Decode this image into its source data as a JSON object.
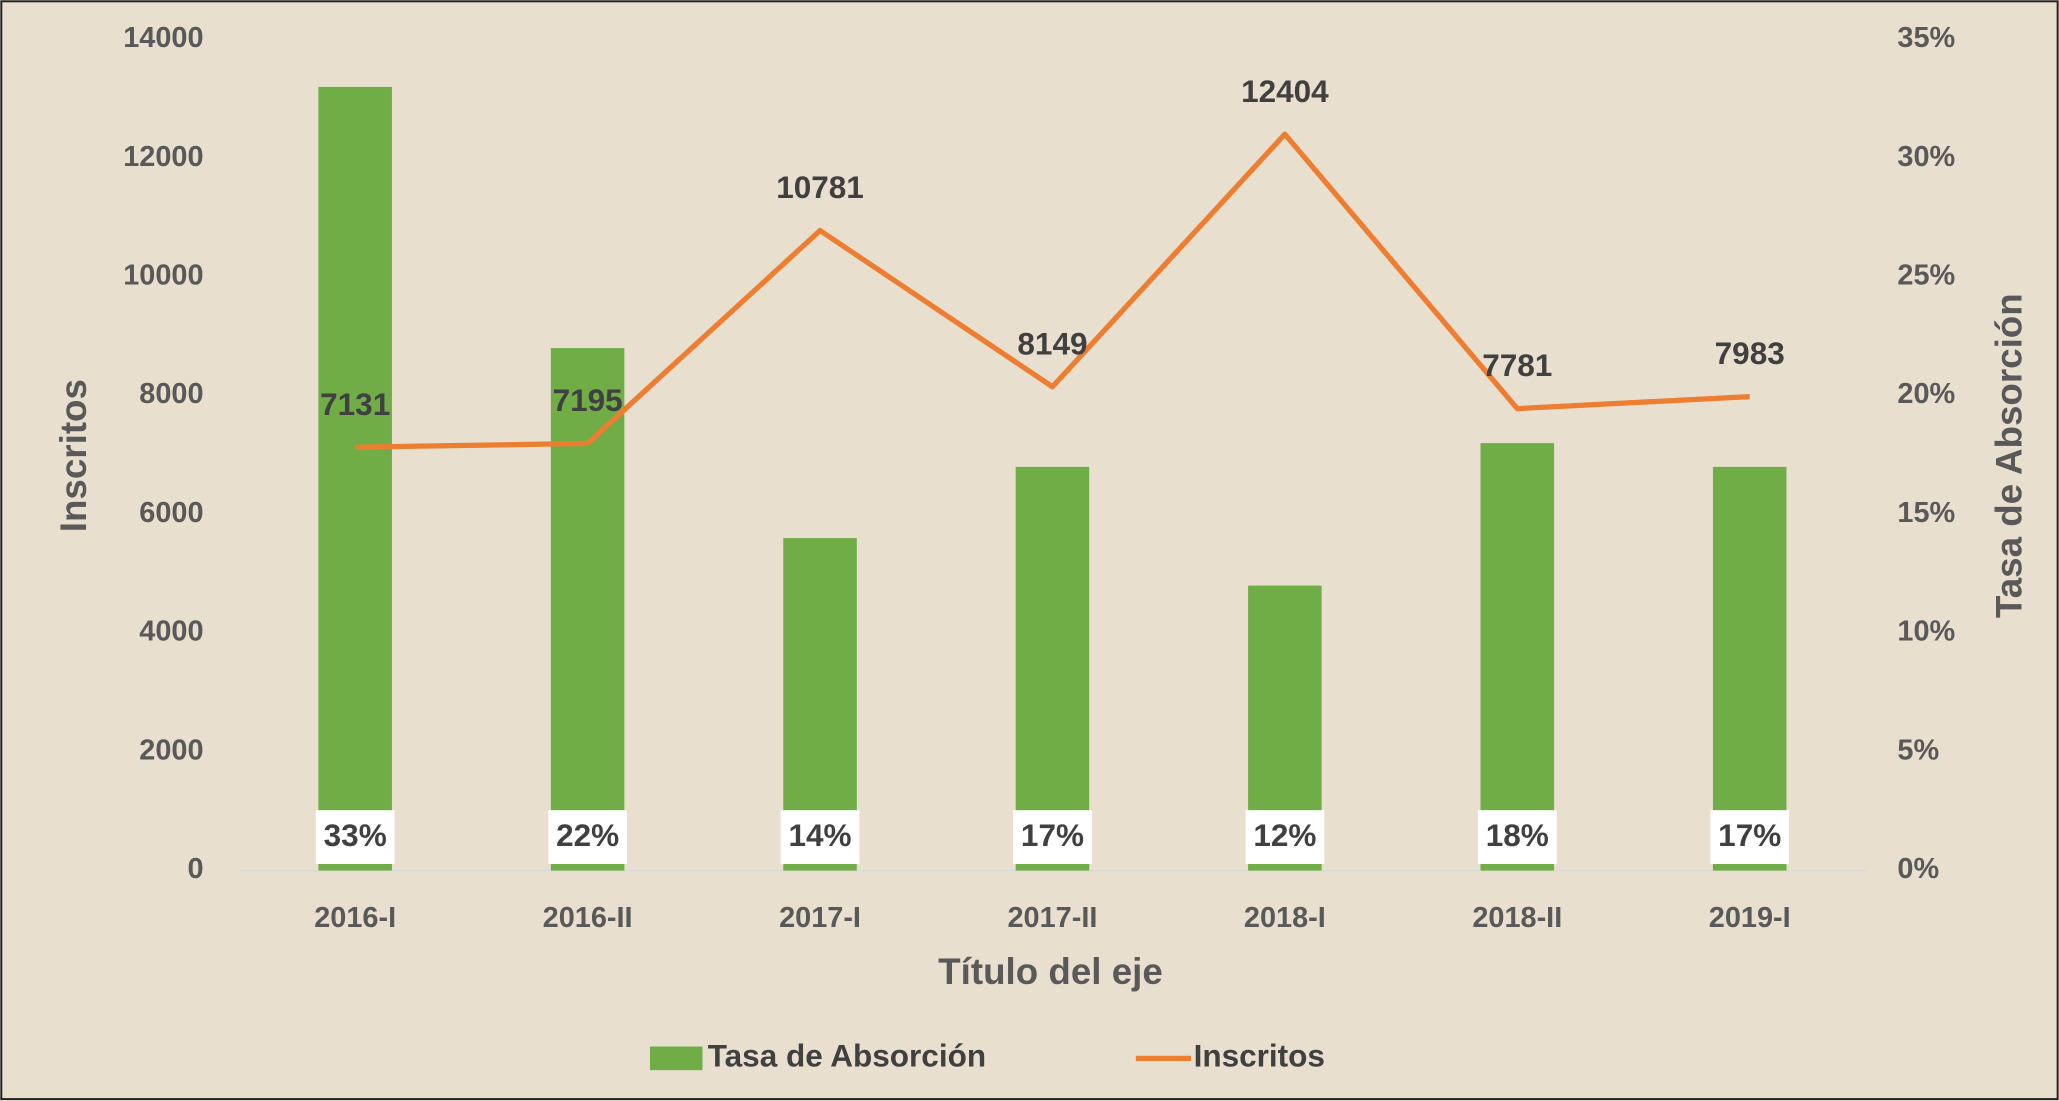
{
  "chart_data": {
    "type": "combo",
    "categories": [
      "2016-I",
      "2016-II",
      "2017-I",
      "2017-II",
      "2018-I",
      "2018-II",
      "2019-I"
    ],
    "x_label": "Título del eje",
    "y_label": "Inscritos",
    "y2_label": "Tasa de Absorción",
    "ylim": [
      0,
      14000
    ],
    "yticks": [
      0,
      2000,
      4000,
      6000,
      8000,
      10000,
      12000,
      14000
    ],
    "y2lim": [
      0,
      35
    ],
    "y2ticks": [
      {
        "value": 0,
        "label": "0%"
      },
      {
        "value": 5,
        "label": "5%"
      },
      {
        "value": 10,
        "label": "10%"
      },
      {
        "value": 15,
        "label": "15%"
      },
      {
        "value": 20,
        "label": "20%"
      },
      {
        "value": 25,
        "label": "25%"
      },
      {
        "value": 30,
        "label": "30%"
      },
      {
        "value": 35,
        "label": "35%"
      }
    ],
    "grid": false,
    "legend": "bottom",
    "series": [
      {
        "name": "Tasa de Absorción",
        "type": "bar",
        "axis": "y2",
        "color": "#70ad47",
        "values": [
          33,
          22,
          14,
          17,
          12,
          18,
          17
        ],
        "value_labels": [
          "33%",
          "22%",
          "14%",
          "17%",
          "12%",
          "18%",
          "17%"
        ]
      },
      {
        "name": "Inscritos",
        "type": "line",
        "axis": "y",
        "color": "#ed7d31",
        "values": [
          7131,
          7195,
          10781,
          8149,
          12404,
          7781,
          7983
        ]
      }
    ]
  }
}
